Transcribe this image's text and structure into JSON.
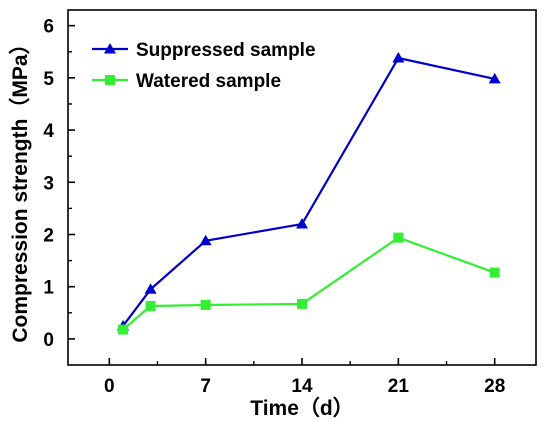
{
  "chart_data": {
    "type": "line",
    "xlabel": "Time（d）",
    "ylabel": "Compression strength（MPa）",
    "xlim": [
      -3,
      31
    ],
    "ylim": [
      -0.5,
      6.3
    ],
    "xticks": [
      0,
      7,
      14,
      21,
      28
    ],
    "yticks": [
      0,
      1,
      2,
      3,
      4,
      5,
      6
    ],
    "grid": false,
    "legend_position": "top-left",
    "series": [
      {
        "name": "Suppressed sample",
        "color": "#0000cc",
        "marker": "triangle",
        "x": [
          1,
          3,
          7,
          14,
          21,
          28
        ],
        "y": [
          0.25,
          0.95,
          1.88,
          2.2,
          5.38,
          4.98
        ]
      },
      {
        "name": "Watered sample",
        "color": "#33ee33",
        "marker": "square",
        "x": [
          1,
          3,
          7,
          14,
          21,
          28
        ],
        "y": [
          0.18,
          0.63,
          0.65,
          0.67,
          1.94,
          1.27
        ]
      }
    ]
  }
}
